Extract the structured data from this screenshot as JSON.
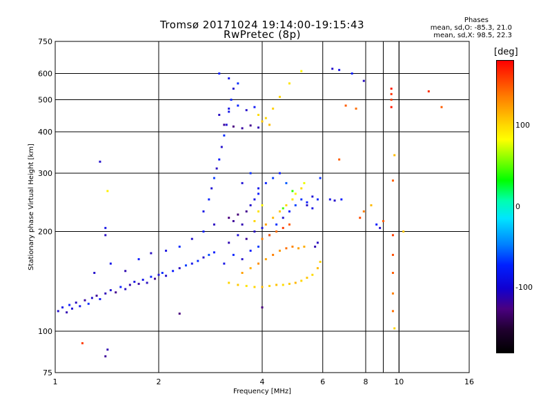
{
  "title_line1": "Tromsø 20171024 19:14:00-19:15:43",
  "title_line2": "RwPretec (8p)",
  "phases": {
    "heading": "Phases",
    "o_line": "mean, sd,O: -85.3, 21.0",
    "x_line": "mean, sd,X:  98.5, 22.3"
  },
  "colorbar": {
    "title": "[deg]",
    "ticks": [
      "100",
      "0",
      "-100"
    ],
    "tick_values": [
      100,
      0,
      -100
    ],
    "range": [
      -180,
      180
    ]
  },
  "chart_data": {
    "type": "scatter",
    "title": "Tromsø 20171024 19:14:00-19:15:43",
    "subtitle": "RwPretec (8p)",
    "xlabel": "Frequency [MHz]",
    "ylabel": "Stationary phase Virtual Height [km]",
    "xscale": "log",
    "yscale": "log",
    "xlim": [
      1,
      16
    ],
    "ylim": [
      75,
      750
    ],
    "xticks": [
      1,
      2,
      4,
      6,
      8,
      10,
      16
    ],
    "xtick_labels": [
      "1",
      "2",
      "4",
      "6",
      "8",
      "10",
      "16"
    ],
    "yticks": [
      75,
      100,
      200,
      300,
      400,
      500,
      600,
      750
    ],
    "ytick_labels": [
      "75",
      "100",
      "200",
      "300",
      "400",
      "500",
      "600",
      "750"
    ],
    "grid": true,
    "color_variable": "phase [deg]",
    "points": [
      [
        1.02,
        115,
        -110
      ],
      [
        1.05,
        118,
        -105
      ],
      [
        1.08,
        114,
        -115
      ],
      [
        1.1,
        120,
        -100
      ],
      [
        1.12,
        117,
        -108
      ],
      [
        1.15,
        122,
        -112
      ],
      [
        1.18,
        119,
        -104
      ],
      [
        1.22,
        124,
        -118
      ],
      [
        1.25,
        121,
        -96
      ],
      [
        1.28,
        126,
        -110
      ],
      [
        1.32,
        128,
        -120
      ],
      [
        1.35,
        125,
        -102
      ],
      [
        1.4,
        130,
        -114
      ],
      [
        1.45,
        133,
        -108
      ],
      [
        1.5,
        131,
        -122
      ],
      [
        1.55,
        136,
        -100
      ],
      [
        1.6,
        134,
        -112
      ],
      [
        1.65,
        138,
        -116
      ],
      [
        1.7,
        141,
        -106
      ],
      [
        1.75,
        139,
        -118
      ],
      [
        1.8,
        143,
        -104
      ],
      [
        1.85,
        140,
        -112
      ],
      [
        1.9,
        146,
        -98
      ],
      [
        1.95,
        144,
        -120
      ],
      [
        2.0,
        148,
        -108
      ],
      [
        2.05,
        150,
        -96
      ],
      [
        2.1,
        147,
        -110
      ],
      [
        2.2,
        152,
        -100
      ],
      [
        2.3,
        155,
        -112
      ],
      [
        2.4,
        158,
        -92
      ],
      [
        2.5,
        160,
        -104
      ],
      [
        2.6,
        163,
        -96
      ],
      [
        2.7,
        167,
        -110
      ],
      [
        2.8,
        170,
        -88
      ],
      [
        2.9,
        173,
        -100
      ],
      [
        1.3,
        150,
        -110
      ],
      [
        1.45,
        160,
        -104
      ],
      [
        1.6,
        152,
        -115
      ],
      [
        1.75,
        165,
        -100
      ],
      [
        1.9,
        172,
        -112
      ],
      [
        2.1,
        175,
        -106
      ],
      [
        2.3,
        180,
        -96
      ],
      [
        2.5,
        190,
        -110
      ],
      [
        2.7,
        200,
        -100
      ],
      [
        2.9,
        210,
        -112
      ],
      [
        2.7,
        230,
        -105
      ],
      [
        2.8,
        250,
        -98
      ],
      [
        2.85,
        270,
        -108
      ],
      [
        2.9,
        290,
        -92
      ],
      [
        2.95,
        310,
        -112
      ],
      [
        3.0,
        330,
        -100
      ],
      [
        3.05,
        360,
        -110
      ],
      [
        3.1,
        390,
        -96
      ],
      [
        3.15,
        420,
        -108
      ],
      [
        3.2,
        460,
        -104
      ],
      [
        3.25,
        500,
        -98
      ],
      [
        3.3,
        540,
        -110
      ],
      [
        3.0,
        600,
        -100
      ],
      [
        3.2,
        580,
        -104
      ],
      [
        3.4,
        560,
        -96
      ],
      [
        3.1,
        420,
        -120
      ],
      [
        3.3,
        415,
        -125
      ],
      [
        3.5,
        410,
        -118
      ],
      [
        3.7,
        418,
        -122
      ],
      [
        3.9,
        412,
        -115
      ],
      [
        3.2,
        470,
        -105
      ],
      [
        3.4,
        480,
        -98
      ],
      [
        3.6,
        465,
        -110
      ],
      [
        3.8,
        475,
        -102
      ],
      [
        3.0,
        450,
        -112
      ],
      [
        3.2,
        220,
        -125
      ],
      [
        3.3,
        215,
        -120
      ],
      [
        3.4,
        225,
        -128
      ],
      [
        3.5,
        210,
        -115
      ],
      [
        3.6,
        230,
        -122
      ],
      [
        3.7,
        240,
        -110
      ],
      [
        3.8,
        250,
        -105
      ],
      [
        3.9,
        260,
        -100
      ],
      [
        3.5,
        280,
        -108
      ],
      [
        3.7,
        300,
        -95
      ],
      [
        3.9,
        270,
        -104
      ],
      [
        4.1,
        280,
        -98
      ],
      [
        4.3,
        290,
        -92
      ],
      [
        4.5,
        300,
        -100
      ],
      [
        4.7,
        280,
        -85
      ],
      [
        3.2,
        185,
        -115
      ],
      [
        3.4,
        195,
        -108
      ],
      [
        3.6,
        190,
        -120
      ],
      [
        3.8,
        200,
        -112
      ],
      [
        4.0,
        205,
        -106
      ],
      [
        4.2,
        195,
        -100
      ],
      [
        4.4,
        210,
        -95
      ],
      [
        4.6,
        220,
        -108
      ],
      [
        4.8,
        230,
        -100
      ],
      [
        5.0,
        240,
        -90
      ],
      [
        5.2,
        250,
        -95
      ],
      [
        5.4,
        245,
        -100
      ],
      [
        5.6,
        235,
        -105
      ],
      [
        5.8,
        250,
        -98
      ],
      [
        5.9,
        290,
        -95
      ],
      [
        3.1,
        160,
        -105
      ],
      [
        3.3,
        170,
        -98
      ],
      [
        3.5,
        165,
        -110
      ],
      [
        3.7,
        175,
        -100
      ],
      [
        3.9,
        180,
        -92
      ],
      [
        3.2,
        140,
        110
      ],
      [
        3.4,
        138,
        115
      ],
      [
        3.6,
        137,
        105
      ],
      [
        3.8,
        136,
        110
      ],
      [
        4.0,
        136,
        120
      ],
      [
        4.2,
        137,
        112
      ],
      [
        4.4,
        138,
        118
      ],
      [
        4.6,
        138,
        108
      ],
      [
        4.8,
        139,
        114
      ],
      [
        5.0,
        140,
        122
      ],
      [
        5.2,
        142,
        110
      ],
      [
        5.4,
        145,
        116
      ],
      [
        5.6,
        148,
        108
      ],
      [
        5.8,
        155,
        120
      ],
      [
        5.9,
        162,
        112
      ],
      [
        3.5,
        150,
        130
      ],
      [
        3.7,
        155,
        125
      ],
      [
        3.9,
        160,
        135
      ],
      [
        4.1,
        165,
        128
      ],
      [
        4.3,
        170,
        140
      ],
      [
        4.5,
        175,
        132
      ],
      [
        4.7,
        178,
        145
      ],
      [
        4.9,
        180,
        138
      ],
      [
        5.1,
        178,
        130
      ],
      [
        5.3,
        180,
        125
      ],
      [
        4.0,
        190,
        140
      ],
      [
        4.2,
        195,
        150
      ],
      [
        4.4,
        200,
        145
      ],
      [
        4.6,
        205,
        160
      ],
      [
        4.8,
        210,
        152
      ],
      [
        4.1,
        210,
        130
      ],
      [
        4.3,
        220,
        120
      ],
      [
        4.5,
        230,
        115
      ],
      [
        4.7,
        240,
        110
      ],
      [
        4.9,
        250,
        105
      ],
      [
        5.0,
        260,
        100
      ],
      [
        5.2,
        270,
        108
      ],
      [
        4.6,
        235,
        40
      ],
      [
        4.9,
        265,
        30
      ],
      [
        5.3,
        280,
        90
      ],
      [
        3.9,
        230,
        105
      ],
      [
        4.0,
        240,
        98
      ],
      [
        3.8,
        215,
        110
      ],
      [
        4.0,
        430,
        115
      ],
      [
        4.1,
        440,
        110
      ],
      [
        3.9,
        450,
        108
      ],
      [
        4.2,
        420,
        120
      ],
      [
        4.3,
        470,
        112
      ],
      [
        4.5,
        510,
        110
      ],
      [
        4.8,
        560,
        105
      ],
      [
        5.2,
        610,
        98
      ],
      [
        5.4,
        240,
        -110
      ],
      [
        5.6,
        255,
        -108
      ],
      [
        5.7,
        180,
        -115
      ],
      [
        5.8,
        185,
        -112
      ],
      [
        6.3,
        250,
        -105
      ],
      [
        6.5,
        248,
        -110
      ],
      [
        6.8,
        250,
        -100
      ],
      [
        6.4,
        620,
        -110
      ],
      [
        6.7,
        615,
        -105
      ],
      [
        7.3,
        600,
        -100
      ],
      [
        7.9,
        570,
        -112
      ],
      [
        7.0,
        480,
        150
      ],
      [
        7.5,
        470,
        145
      ],
      [
        7.7,
        220,
        155
      ],
      [
        6.7,
        330,
        150
      ],
      [
        7.9,
        230,
        140
      ],
      [
        8.3,
        240,
        120
      ],
      [
        8.6,
        210,
        -100
      ],
      [
        8.8,
        205,
        -110
      ],
      [
        9.0,
        215,
        150
      ],
      [
        9.5,
        540,
        170
      ],
      [
        9.5,
        520,
        165
      ],
      [
        9.5,
        500,
        160
      ],
      [
        9.5,
        475,
        172
      ],
      [
        9.6,
        195,
        160
      ],
      [
        9.7,
        340,
        120
      ],
      [
        9.6,
        285,
        150
      ],
      [
        9.6,
        170,
        155
      ],
      [
        9.6,
        150,
        150
      ],
      [
        9.6,
        130,
        140
      ],
      [
        9.6,
        115,
        145
      ],
      [
        9.7,
        102,
        110
      ],
      [
        10.3,
        200,
        115
      ],
      [
        12.2,
        530,
        165
      ],
      [
        13.3,
        475,
        150
      ],
      [
        1.35,
        325,
        -110
      ],
      [
        1.42,
        265,
        100
      ],
      [
        1.4,
        205,
        -105
      ],
      [
        1.4,
        195,
        -112
      ],
      [
        1.2,
        92,
        160
      ],
      [
        1.42,
        88,
        -115
      ],
      [
        1.4,
        84,
        -120
      ],
      [
        2.3,
        113,
        -125
      ],
      [
        4.0,
        118,
        -125
      ]
    ]
  },
  "footer": {}
}
